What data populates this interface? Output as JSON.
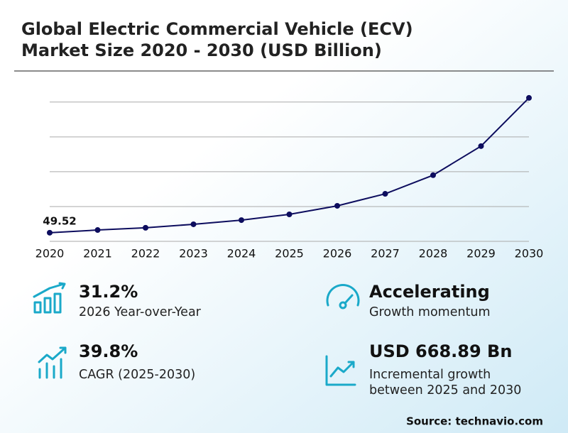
{
  "chart_data": {
    "type": "line",
    "title_lines": [
      "Global Electric Commercial Vehicle (ECV)",
      "Market Size 2020 - 2030 (USD Billion)"
    ],
    "categories": [
      "2020",
      "2021",
      "2022",
      "2023",
      "2024",
      "2025",
      "2026",
      "2027",
      "2028",
      "2029",
      "2030"
    ],
    "values": [
      49.52,
      65,
      78,
      98,
      122,
      155,
      204,
      273,
      380,
      547,
      824
    ],
    "value_labels": [
      "49.52",
      null,
      null,
      null,
      null,
      null,
      null,
      null,
      null,
      null,
      null
    ],
    "color": "#0d0d5e",
    "ylim": [
      0,
      840
    ],
    "yticks": [
      200,
      400,
      600,
      800
    ],
    "grid": true
  },
  "kpis": [
    {
      "headline": "31.2%",
      "text": [
        "2026 Year-over-Year"
      ]
    },
    {
      "headline": "Accelerating",
      "text": [
        "Growth momentum"
      ]
    },
    {
      "headline": "39.8%",
      "text": [
        "CAGR (2025-2030)"
      ]
    },
    {
      "headline": "USD 668.89 Bn",
      "text": [
        "Incremental growth",
        "between 2025 and 2030"
      ]
    }
  ],
  "source": "Source: technavio.com"
}
